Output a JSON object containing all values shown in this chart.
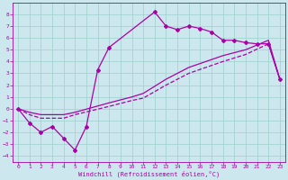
{
  "xlabel": "Windchill (Refroidissement éolien,°C)",
  "bg_color": "#cce8ee",
  "grid_color": "#9dcfcc",
  "line_color": "#aa00aa",
  "xlim": [
    -0.5,
    23.5
  ],
  "ylim": [
    -4.5,
    9.0
  ],
  "xticks": [
    0,
    1,
    2,
    3,
    4,
    5,
    6,
    7,
    8,
    9,
    10,
    11,
    12,
    13,
    14,
    15,
    16,
    17,
    18,
    19,
    20,
    21,
    22,
    23
  ],
  "yticks": [
    -4,
    -3,
    -2,
    -1,
    0,
    1,
    2,
    3,
    4,
    5,
    6,
    7,
    8
  ],
  "line1_x": [
    0,
    1,
    2,
    3,
    4,
    5,
    6,
    7,
    8,
    12,
    13,
    14,
    15,
    16,
    17,
    18,
    19,
    20,
    21,
    22,
    23
  ],
  "line1_y": [
    0,
    -1.2,
    -2.0,
    -1.5,
    -2.5,
    -3.5,
    -1.5,
    3.3,
    5.2,
    8.2,
    7.0,
    6.7,
    7.0,
    6.8,
    6.5,
    5.8,
    5.8,
    5.6,
    5.5,
    5.5,
    2.5
  ],
  "line2_x": [
    0,
    1,
    2,
    3,
    4,
    5,
    8,
    10,
    11,
    13,
    15,
    18,
    20,
    22,
    23
  ],
  "line2_y": [
    0,
    -0.3,
    -0.5,
    -0.5,
    -0.5,
    -0.3,
    0.5,
    1.0,
    1.3,
    2.5,
    3.5,
    4.5,
    5.0,
    5.8,
    2.5
  ],
  "line3_x": [
    0,
    1,
    2,
    3,
    4,
    5,
    8,
    10,
    11,
    13,
    15,
    18,
    20,
    22,
    23
  ],
  "line3_y": [
    0,
    -0.5,
    -0.8,
    -0.8,
    -0.8,
    -0.5,
    0.2,
    0.7,
    0.9,
    2.0,
    3.0,
    4.0,
    4.6,
    5.5,
    2.5
  ]
}
